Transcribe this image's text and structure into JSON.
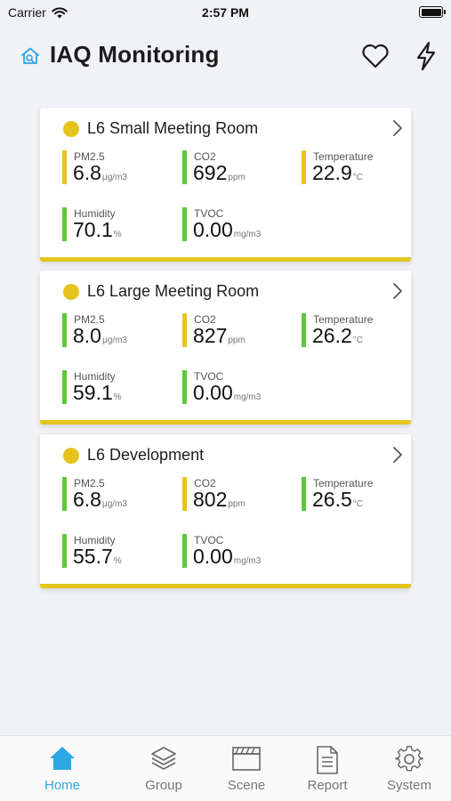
{
  "status_bar": {
    "carrier": "Carrier",
    "time": "2:57 PM"
  },
  "header": {
    "title": "IAQ Monitoring",
    "logo_icon": "home-monitor-icon",
    "favorite_icon": "heart-icon",
    "action_icon": "lightning-icon"
  },
  "colors": {
    "accent": "#2ea7e5",
    "warning": "#e8c41f",
    "good": "#5ec83a"
  },
  "rooms": [
    {
      "name": "L6 Small Meeting Room",
      "status": "yellow",
      "metrics": {
        "pm25": {
          "label": "PM2.5",
          "value": "6.8",
          "unit": "μg/m3",
          "status": "yellow"
        },
        "co2": {
          "label": "CO2",
          "value": "692",
          "unit": "ppm",
          "status": "green"
        },
        "temperature": {
          "label": "Temperature",
          "value": "22.9",
          "unit": "°C",
          "status": "yellow"
        },
        "humidity": {
          "label": "Humidity",
          "value": "70.1",
          "unit": "%",
          "status": "green"
        },
        "tvoc": {
          "label": "TVOC",
          "value": "0.00",
          "unit": "mg/m3",
          "status": "green"
        }
      }
    },
    {
      "name": "L6 Large Meeting Room",
      "status": "yellow",
      "metrics": {
        "pm25": {
          "label": "PM2.5",
          "value": "8.0",
          "unit": "μg/m3",
          "status": "green"
        },
        "co2": {
          "label": "CO2",
          "value": "827",
          "unit": "ppm",
          "status": "yellow"
        },
        "temperature": {
          "label": "Temperature",
          "value": "26.2",
          "unit": "°C",
          "status": "green"
        },
        "humidity": {
          "label": "Humidity",
          "value": "59.1",
          "unit": "%",
          "status": "green"
        },
        "tvoc": {
          "label": "TVOC",
          "value": "0.00",
          "unit": "mg/m3",
          "status": "green"
        }
      }
    },
    {
      "name": "L6 Development",
      "status": "yellow",
      "metrics": {
        "pm25": {
          "label": "PM2.5",
          "value": "6.8",
          "unit": "μg/m3",
          "status": "green"
        },
        "co2": {
          "label": "CO2",
          "value": "802",
          "unit": "ppm",
          "status": "yellow"
        },
        "temperature": {
          "label": "Temperature",
          "value": "26.5",
          "unit": "°C",
          "status": "green"
        },
        "humidity": {
          "label": "Humidity",
          "value": "55.7",
          "unit": "%",
          "status": "green"
        },
        "tvoc": {
          "label": "TVOC",
          "value": "0.00",
          "unit": "mg/m3",
          "status": "green"
        }
      }
    }
  ],
  "tabs": [
    {
      "label": "Home",
      "icon": "home-icon",
      "active": true
    },
    {
      "label": "Group",
      "icon": "layers-icon",
      "active": false
    },
    {
      "label": "Scene",
      "icon": "clapperboard-icon",
      "active": false
    },
    {
      "label": "Report",
      "icon": "document-icon",
      "active": false
    },
    {
      "label": "System",
      "icon": "gear-icon",
      "active": false
    }
  ]
}
